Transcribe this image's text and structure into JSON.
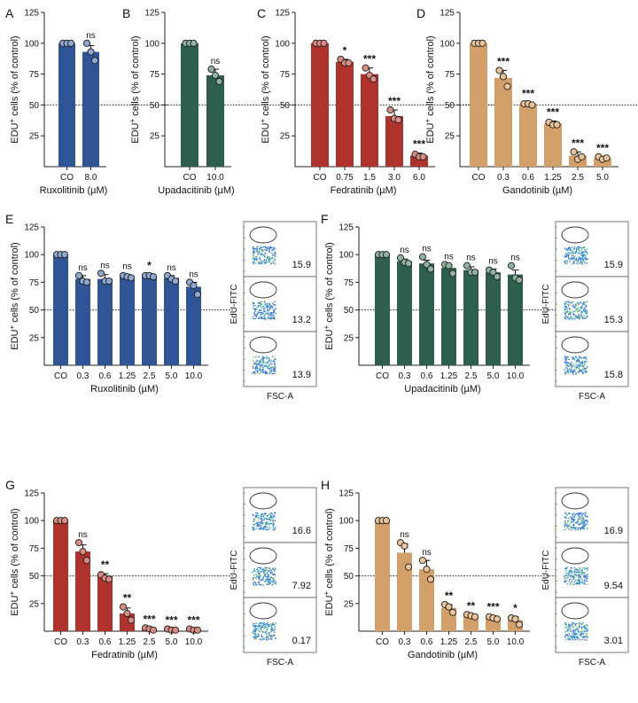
{
  "colors": {
    "ruxolitinib": "#2f5597",
    "upadacitinib": "#2e5e4e",
    "fedratinib": "#b0322c",
    "gandotinib": "#d4a06a",
    "point_ruxolitinib": "#8fa8cf",
    "point_upadacitinib": "#8fb2a2",
    "point_fedratinib": "#d98c84",
    "point_gandotinib": "#e9c49b"
  },
  "chart_data": [
    {
      "id": "A",
      "panel_letter": "A",
      "type": "bar",
      "categories": [
        "CO",
        "8.0"
      ],
      "values": [
        100,
        93
      ],
      "errors": [
        0,
        5
      ],
      "points": [
        [
          100,
          100,
          100
        ],
        [
          100,
          93,
          86
        ]
      ],
      "significance": [
        "",
        "ns"
      ],
      "xlabel": "Ruxolitinib (µM)",
      "ylabel_main": "EDU",
      "ylabel_sup": "+",
      "ylabel_rest": " cells (% of control)",
      "yticks": [
        "25",
        "50",
        "75",
        "100",
        "125"
      ],
      "ylim": [
        0,
        125
      ],
      "ref_line": 50,
      "color_key": "ruxolitinib"
    },
    {
      "id": "B",
      "panel_letter": "B",
      "type": "bar",
      "categories": [
        "CO",
        "10.0"
      ],
      "values": [
        100,
        74
      ],
      "errors": [
        0,
        5
      ],
      "points": [
        [
          100,
          100,
          100
        ],
        [
          79,
          74,
          69
        ]
      ],
      "significance": [
        "",
        "ns"
      ],
      "xlabel": "Upadacitinib (µM)",
      "ylabel_main": "EDU",
      "ylabel_sup": "+",
      "ylabel_rest": " cells (% of control)",
      "yticks": [
        "25",
        "50",
        "75",
        "100",
        "125"
      ],
      "ylim": [
        0,
        125
      ],
      "ref_line": 50,
      "color_key": "upadacitinib"
    },
    {
      "id": "C",
      "panel_letter": "C",
      "type": "bar",
      "categories": [
        "CO",
        "0.75",
        "1.5",
        "3.0",
        "6.0"
      ],
      "values": [
        100,
        85,
        75,
        41,
        9
      ],
      "errors": [
        0,
        2,
        5,
        5,
        2
      ],
      "points": [
        [
          100,
          100,
          100
        ],
        [
          87,
          84,
          84
        ],
        [
          80,
          74,
          71
        ],
        [
          46,
          39,
          38
        ],
        [
          10,
          8,
          8
        ]
      ],
      "significance": [
        "",
        "*",
        "***",
        "***",
        "***"
      ],
      "xlabel": "Fedratinib (µM)",
      "ylabel_main": "EDU",
      "ylabel_sup": "+",
      "ylabel_rest": " cells (% of control)",
      "yticks": [
        "25",
        "50",
        "75",
        "100",
        "125"
      ],
      "ylim": [
        0,
        125
      ],
      "ref_line": 50,
      "color_key": "fedratinib"
    },
    {
      "id": "D",
      "panel_letter": "D",
      "type": "bar",
      "categories": [
        "CO",
        "0.3",
        "0.6",
        "1.25",
        "2.5",
        "5.0"
      ],
      "values": [
        100,
        72,
        51,
        35,
        9,
        7
      ],
      "errors": [
        0,
        6,
        1,
        2,
        3,
        1
      ],
      "points": [
        [
          100,
          100,
          100
        ],
        [
          78,
          73,
          65
        ],
        [
          51,
          51,
          50
        ],
        [
          36,
          34,
          34
        ],
        [
          12,
          6,
          8
        ],
        [
          8,
          6,
          7
        ]
      ],
      "significance": [
        "",
        "***",
        "***",
        "***",
        "***",
        "***"
      ],
      "xlabel": "Gandotinib (µM)",
      "ylabel_main": "EDU",
      "ylabel_sup": "+",
      "ylabel_rest": " cells (% of control)",
      "yticks": [
        "25",
        "50",
        "75",
        "100",
        "125"
      ],
      "ylim": [
        0,
        125
      ],
      "ref_line": 50,
      "color_key": "gandotinib"
    },
    {
      "id": "E",
      "panel_letter": "E",
      "type": "bar",
      "categories": [
        "CO",
        "0.3",
        "0.6",
        "1.25",
        "2.5",
        "5.0",
        "10.0"
      ],
      "values": [
        100,
        78,
        78,
        80,
        81,
        79,
        71
      ],
      "errors": [
        0,
        3,
        4,
        2,
        1,
        2,
        4
      ],
      "points": [
        [
          100,
          100,
          100
        ],
        [
          81,
          76,
          75
        ],
        [
          83,
          76,
          76
        ],
        [
          81,
          80,
          79
        ],
        [
          81,
          81,
          80
        ],
        [
          81,
          78,
          76
        ],
        [
          75,
          72,
          64
        ]
      ],
      "significance": [
        "",
        "ns",
        "ns",
        "ns",
        "*",
        "ns",
        "ns"
      ],
      "xlabel": "Ruxolitinib (µM)",
      "ylabel_main": "EDU",
      "ylabel_sup": "+",
      "ylabel_rest": " cells (% of control)",
      "yticks": [
        "25",
        "50",
        "75",
        "100",
        "125"
      ],
      "ylim": [
        0,
        125
      ],
      "ref_line": 50,
      "color_key": "ruxolitinib"
    },
    {
      "id": "F",
      "panel_letter": "F",
      "type": "bar",
      "categories": [
        "CO",
        "0.3",
        "0.6",
        "1.25",
        "2.5",
        "5.0",
        "10.0"
      ],
      "values": [
        100,
        94,
        92,
        88,
        86,
        84,
        82
      ],
      "errors": [
        0,
        2,
        3,
        3,
        3,
        3,
        4
      ],
      "points": [
        [
          100,
          100,
          100
        ],
        [
          97,
          93,
          92
        ],
        [
          98,
          91,
          87
        ],
        [
          91,
          90,
          83
        ],
        [
          90,
          84,
          84
        ],
        [
          86,
          84,
          80
        ],
        [
          90,
          79,
          77
        ]
      ],
      "significance": [
        "",
        "ns",
        "ns",
        "ns",
        "ns",
        "ns",
        "ns"
      ],
      "xlabel": "Upadacitinib (µM)",
      "ylabel_main": "EDU",
      "ylabel_sup": "+",
      "ylabel_rest": " cells (% of control)",
      "yticks": [
        "25",
        "50",
        "75",
        "100",
        "125"
      ],
      "ylim": [
        0,
        125
      ],
      "ref_line": 50,
      "color_key": "upadacitinib"
    },
    {
      "id": "G",
      "panel_letter": "G",
      "type": "bar",
      "categories": [
        "CO",
        "0.3",
        "0.6",
        "1.25",
        "2.5",
        "5.0",
        "10.0"
      ],
      "values": [
        100,
        72,
        50,
        16,
        2,
        1,
        1
      ],
      "errors": [
        0,
        6,
        2,
        5,
        1,
        1,
        1
      ],
      "points": [
        [
          100,
          100,
          100
        ],
        [
          80,
          72,
          64
        ],
        [
          51,
          48,
          47
        ],
        [
          22,
          16,
          10
        ],
        [
          3,
          2,
          1
        ],
        [
          2,
          1,
          1
        ],
        [
          2,
          1,
          1
        ]
      ],
      "significance": [
        "",
        "ns",
        "**",
        "**",
        "***",
        "***",
        "***"
      ],
      "xlabel": "Fedratinib (µM)",
      "ylabel_main": "EDU",
      "ylabel_sup": "+",
      "ylabel_rest": " cells (% of control)",
      "yticks": [
        "25",
        "50",
        "75",
        "100",
        "125"
      ],
      "ylim": [
        0,
        125
      ],
      "ref_line": 50,
      "color_key": "fedratinib"
    },
    {
      "id": "H",
      "panel_letter": "H",
      "type": "bar",
      "categories": [
        "CO",
        "0.3",
        "0.6",
        "1.25",
        "2.5",
        "5.0",
        "10.0"
      ],
      "values": [
        100,
        71,
        56,
        21,
        14,
        12,
        10
      ],
      "errors": [
        0,
        8,
        8,
        3,
        1,
        2,
        3
      ],
      "points": [
        [
          100,
          100,
          100
        ],
        [
          80,
          77,
          58
        ],
        [
          64,
          56,
          47
        ],
        [
          24,
          22,
          17
        ],
        [
          15,
          14,
          13
        ],
        [
          13,
          12,
          11
        ],
        [
          12,
          11,
          6
        ]
      ],
      "significance": [
        "",
        "ns",
        "ns",
        "**",
        "**",
        "***",
        "*"
      ],
      "xlabel": "Gandotinib (µM)",
      "ylabel_main": "EDU",
      "ylabel_sup": "+",
      "ylabel_rest": " cells (% of control)",
      "yticks": [
        "25",
        "50",
        "75",
        "100",
        "125"
      ],
      "ylim": [
        0,
        125
      ],
      "ref_line": 50,
      "color_key": "gandotinib"
    }
  ],
  "flow_panels": [
    {
      "id": "E",
      "ylabel": "EdU-FITC",
      "xlabel": "FSC-A",
      "values": [
        "15.9",
        "13.2",
        "13.9"
      ]
    },
    {
      "id": "F",
      "ylabel": "EdU-FITC",
      "xlabel": "FSC-A",
      "values": [
        "15.9",
        "15.3",
        "15.8"
      ]
    },
    {
      "id": "G",
      "ylabel": "EdU-FITC",
      "xlabel": "FSC-A",
      "values": [
        "16.6",
        "7.92",
        "0.17"
      ]
    },
    {
      "id": "H",
      "ylabel": "EdU-FITC",
      "xlabel": "FSC-A",
      "values": [
        "16.9",
        "9.54",
        "3.01"
      ]
    }
  ]
}
